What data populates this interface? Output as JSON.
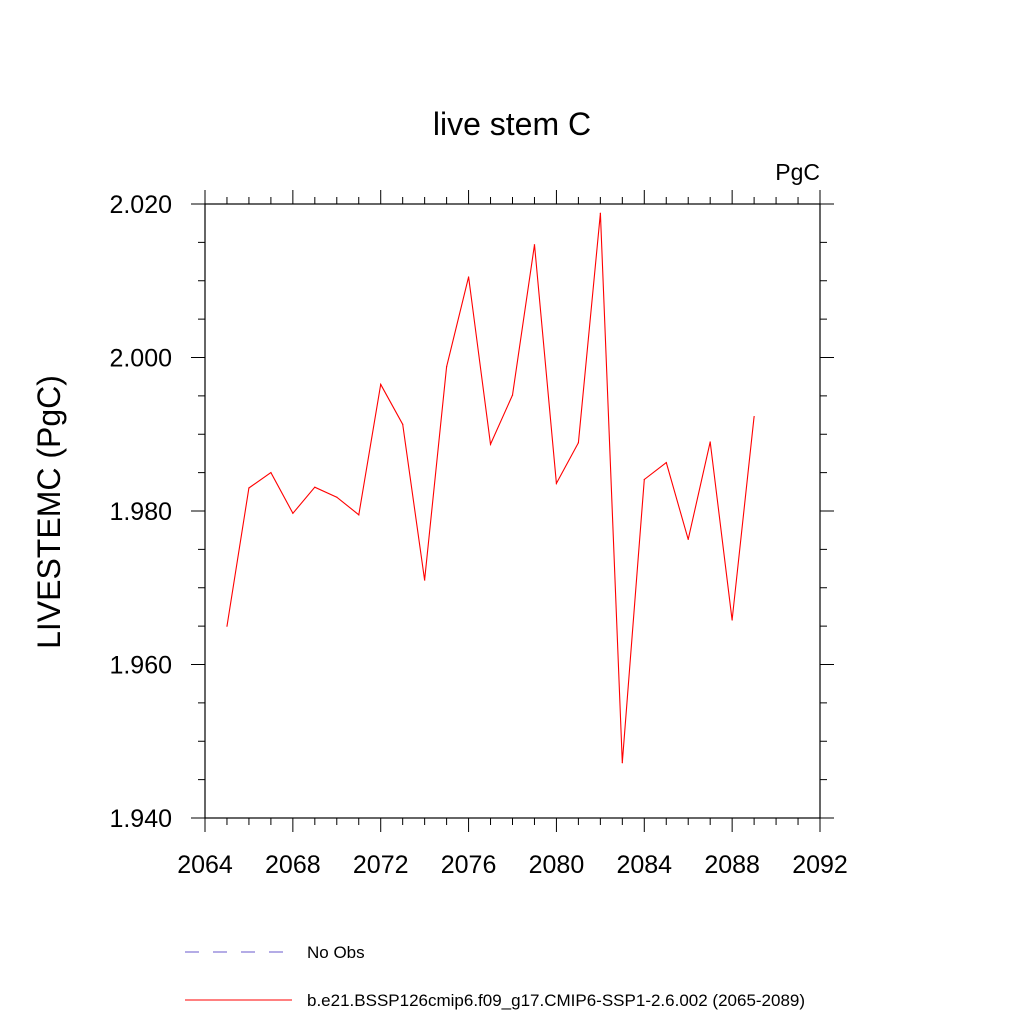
{
  "chart_data": {
    "type": "line",
    "title": "live stem C",
    "units_label": "PgC",
    "xlabel": "",
    "ylabel": "LIVESTEMC  (PgC)",
    "xlim": [
      2064,
      2092
    ],
    "ylim": [
      1.94,
      2.02
    ],
    "x_ticks": [
      "2064",
      "2068",
      "2072",
      "2076",
      "2080",
      "2084",
      "2088",
      "2092"
    ],
    "y_ticks": [
      "1.940",
      "1.960",
      "1.980",
      "2.000",
      "2.020"
    ],
    "grid": false,
    "legend_placement": "bottom",
    "x": [
      2065,
      2066,
      2067,
      2068,
      2069,
      2070,
      2071,
      2072,
      2073,
      2074,
      2075,
      2076,
      2077,
      2078,
      2079,
      2080,
      2081,
      2082,
      2083,
      2084,
      2085,
      2086,
      2087,
      2088,
      2089
    ],
    "series": [
      {
        "name": "b.e21.BSSP126cmip6.f09_g17.CMIP6-SSP1-2.6.002 (2065-2089)",
        "color": "#ff0000",
        "values": [
          1.965,
          1.983,
          1.985,
          1.9797,
          1.9831,
          1.9818,
          1.9795,
          1.9965,
          1.9913,
          1.971,
          1.9988,
          2.0105,
          1.9887,
          1.9951,
          2.0147,
          1.9836,
          1.9889,
          2.0188,
          1.9472,
          1.9841,
          1.9863,
          1.9763,
          1.989,
          1.9658,
          1.9923
        ]
      }
    ],
    "legend": [
      {
        "label": "No Obs",
        "color": "#6a5acd",
        "style": "dashed"
      },
      {
        "label": "b.e21.BSSP126cmip6.f09_g17.CMIP6-SSP1-2.6.002 (2065-2089)",
        "color": "#ff0000",
        "style": "solid"
      }
    ]
  }
}
